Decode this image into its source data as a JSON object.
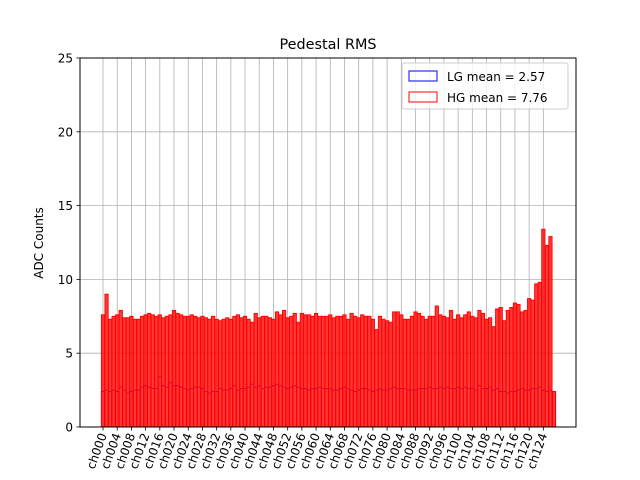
{
  "chart_data": {
    "type": "bar",
    "title": "Pedestal RMS",
    "xlabel": "",
    "ylabel": "ADC Counts",
    "ylim": [
      0,
      25
    ],
    "yticks": [
      0,
      5,
      10,
      15,
      20,
      25
    ],
    "grid": true,
    "legend_position": "top-right",
    "channel_count": 128,
    "xtick_step": 4,
    "categories_note": "ch000 … ch127",
    "series": [
      {
        "name": "LG mean = 2.57",
        "edge_color": "#0000ff",
        "values": [
          2.4,
          2.5,
          2.4,
          2.5,
          2.4,
          2.7,
          2.5,
          2.3,
          2.4,
          2.5,
          2.5,
          2.7,
          2.8,
          2.7,
          2.6,
          2.6,
          3.4,
          2.8,
          2.7,
          3.0,
          2.8,
          2.8,
          2.7,
          2.6,
          2.5,
          2.6,
          2.7,
          2.7,
          2.6,
          2.4,
          2.3,
          2.4,
          2.4,
          2.6,
          2.5,
          2.5,
          2.6,
          2.8,
          2.5,
          2.6,
          2.6,
          2.7,
          2.9,
          2.7,
          2.8,
          2.6,
          2.7,
          2.7,
          2.8,
          2.9,
          2.8,
          2.7,
          2.6,
          2.7,
          2.8,
          2.7,
          2.6,
          2.6,
          2.5,
          2.6,
          2.6,
          2.7,
          2.6,
          2.6,
          2.6,
          2.5,
          2.5,
          2.6,
          2.7,
          2.6,
          2.5,
          2.4,
          2.5,
          2.6,
          2.6,
          2.5,
          2.4,
          2.5,
          2.6,
          2.5,
          2.5,
          2.6,
          2.7,
          2.6,
          2.6,
          2.6,
          2.5,
          2.5,
          2.5,
          2.6,
          2.6,
          2.6,
          2.7,
          2.6,
          2.6,
          2.7,
          2.6,
          2.7,
          2.6,
          2.6,
          2.7,
          2.6,
          2.7,
          2.6,
          2.6,
          2.5,
          2.8,
          2.6,
          2.6,
          2.7,
          2.5,
          2.6,
          2.4,
          2.4,
          2.3,
          2.4,
          2.4,
          2.5,
          2.6,
          2.5,
          2.5,
          2.6,
          2.6,
          2.7,
          2.5,
          2.4,
          2.5,
          2.4
        ]
      },
      {
        "name": "HG mean = 7.76",
        "edge_color": "#ff0000",
        "fill_color": "#ff0000",
        "values": [
          7.6,
          9.0,
          7.3,
          7.5,
          7.6,
          7.9,
          7.4,
          7.4,
          7.5,
          7.3,
          7.3,
          7.5,
          7.6,
          7.7,
          7.6,
          7.5,
          7.6,
          7.4,
          7.5,
          7.6,
          7.9,
          7.7,
          7.6,
          7.5,
          7.5,
          7.6,
          7.5,
          7.4,
          7.5,
          7.4,
          7.3,
          7.5,
          7.3,
          7.2,
          7.3,
          7.4,
          7.3,
          7.5,
          7.6,
          7.4,
          7.5,
          7.3,
          7.1,
          7.7,
          7.4,
          7.5,
          7.5,
          7.4,
          7.3,
          7.8,
          7.6,
          7.9,
          7.4,
          7.5,
          7.7,
          7.1,
          7.7,
          7.6,
          7.6,
          7.5,
          7.7,
          7.5,
          7.5,
          7.5,
          7.6,
          7.4,
          7.5,
          7.5,
          7.6,
          7.3,
          7.7,
          7.5,
          7.4,
          7.6,
          7.5,
          7.5,
          7.3,
          6.6,
          7.5,
          7.3,
          7.2,
          7.1,
          7.8,
          7.8,
          7.6,
          7.3,
          7.3,
          7.5,
          7.8,
          7.7,
          7.5,
          7.3,
          7.5,
          7.5,
          8.2,
          7.6,
          7.5,
          7.4,
          7.9,
          7.3,
          7.6,
          7.4,
          7.6,
          7.8,
          7.5,
          7.4,
          7.9,
          7.7,
          7.3,
          7.4,
          6.8,
          8.0,
          8.1,
          7.2,
          7.9,
          8.1,
          8.4,
          8.3,
          7.8,
          7.9,
          8.7,
          8.6,
          9.7,
          9.8,
          13.4,
          12.3,
          12.9,
          2.4
        ]
      }
    ]
  }
}
